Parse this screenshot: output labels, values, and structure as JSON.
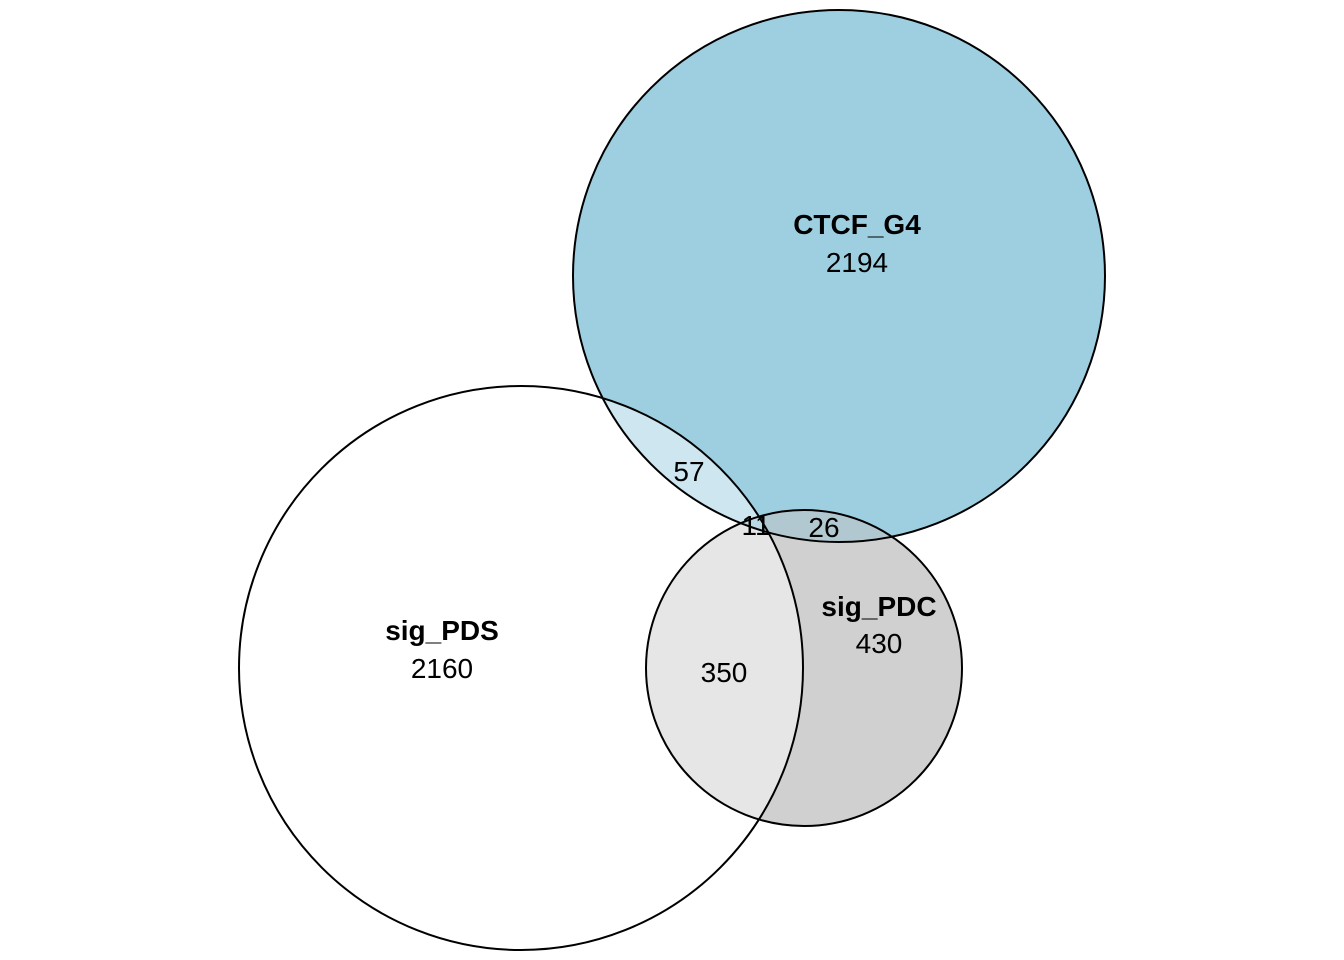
{
  "diagram": {
    "type": "venn",
    "sets": [
      {
        "id": "ctcf",
        "name": "CTCF_G4",
        "count": "2194",
        "fill": "#9ecfe1"
      },
      {
        "id": "pds",
        "name": "sig_PDS",
        "count": "2160",
        "fill": "#ffffff"
      },
      {
        "id": "pdc",
        "name": "sig_PDC",
        "count": "430",
        "fill": "#d0d0d0"
      }
    ],
    "intersections": {
      "ctcf_pds": "57",
      "all_three": "11",
      "ctcf_pdc": "26",
      "pds_pdc": "350"
    },
    "overlap_colors": {
      "ctcf_pds": "#cde6f0",
      "pds_pdc": "#e6e6e6",
      "ctcf_pdc": "#b2c8d1",
      "all_three": "#bcd8e2"
    }
  }
}
